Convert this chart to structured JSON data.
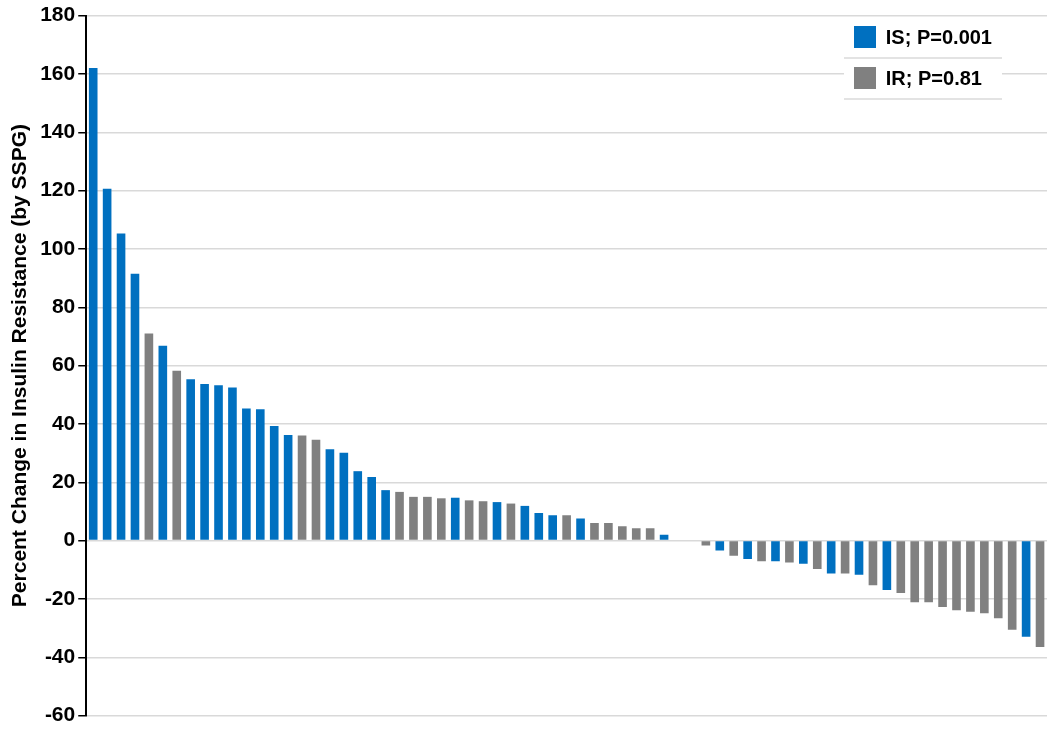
{
  "chart_data": {
    "type": "bar",
    "ylabel": "Percent Change in Insulin Resistance (by SSPG)",
    "categories": [
      null,
      null,
      null,
      null,
      null,
      null,
      null,
      null,
      null,
      null,
      null,
      null,
      null,
      null,
      null,
      null,
      null,
      null,
      null,
      null,
      null,
      null,
      null,
      null,
      null,
      null,
      null,
      null,
      null,
      null,
      null,
      null,
      null,
      null,
      null,
      null,
      null,
      null,
      null,
      null,
      null,
      null,
      null,
      null,
      null,
      null,
      null,
      null,
      null,
      null,
      null,
      null,
      null,
      null,
      null,
      null,
      null,
      null,
      null,
      null,
      null,
      null,
      null,
      null,
      null,
      null,
      null,
      null,
      null
    ],
    "series": [
      {
        "name": "IS; P=0.001",
        "color": "#0070c0",
        "values": [
          162,
          120.6,
          105.3,
          91.5,
          null,
          66.8,
          null,
          55.3,
          53.7,
          53.3,
          52.5,
          45.3,
          45,
          39.3,
          36.2,
          null,
          null,
          31.3,
          30.1,
          23.8,
          21.8,
          17.3,
          null,
          null,
          null,
          null,
          14.7,
          null,
          null,
          13.2,
          null,
          11.9,
          9.5,
          8.7,
          null,
          7.6,
          null,
          null,
          null,
          null,
          null,
          2,
          null,
          null,
          null,
          -3.4,
          null,
          -6.3,
          null,
          -7.1,
          null,
          -7.9,
          null,
          -11.3,
          null,
          -11.7,
          null,
          -16.9,
          null,
          null,
          null,
          null,
          null,
          null,
          null,
          null,
          null,
          -33,
          null
        ]
      },
      {
        "name": "IR; P=0.81",
        "color": "#808080",
        "values": [
          null,
          null,
          null,
          null,
          71,
          null,
          58.2,
          null,
          null,
          null,
          null,
          null,
          null,
          null,
          null,
          36,
          34.6,
          null,
          null,
          null,
          null,
          null,
          16.7,
          15,
          15,
          14.5,
          null,
          13.8,
          13.5,
          null,
          12.7,
          null,
          null,
          null,
          8.7,
          null,
          6,
          6,
          4.9,
          4.2,
          4.2,
          null,
          0,
          0,
          -1.7,
          null,
          -5.2,
          null,
          -7.1,
          null,
          -7.5,
          null,
          -9.7,
          null,
          -11.3,
          null,
          -15.3,
          null,
          -18,
          -21.1,
          -21.1,
          -22.8,
          -23.9,
          -24.4,
          -24.9,
          -26.6,
          -30.6,
          null,
          -36.5
        ]
      }
    ],
    "ylim": [
      -60,
      180
    ],
    "yticks": [
      -60,
      -40,
      -20,
      0,
      20,
      40,
      60,
      80,
      100,
      120,
      140,
      160,
      180
    ],
    "grid": "y",
    "legend": "top right"
  }
}
